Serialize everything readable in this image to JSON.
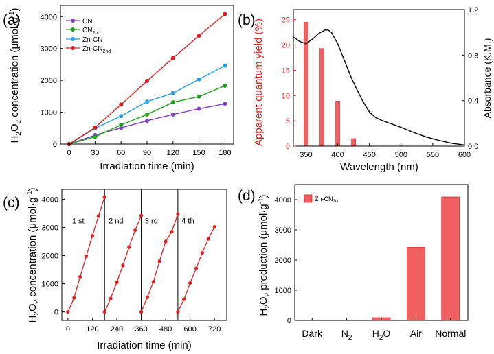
{
  "colors": {
    "cn": "#8040c0",
    "cn2nd": "#22a022",
    "zncn": "#2aa0e0",
    "zncn2nd": "#e02020",
    "bar_fill": "#f06060",
    "bar_edge": "#e02020",
    "absorbance_line": "#000000",
    "right_axis": "#000000",
    "left_axis_b": "#e02020"
  },
  "chart_data": [
    {
      "panel": "(a)",
      "type": "line",
      "xlabel": "Irradiation time (min)",
      "ylabel": "H2O2 concentration (μmol·g-1)",
      "xlim": [
        -10,
        190
      ],
      "ylim": [
        0,
        4350
      ],
      "xticks": [
        0,
        30,
        60,
        90,
        120,
        150,
        180
      ],
      "yticks": [
        0,
        1000,
        2000,
        3000,
        4000
      ],
      "legend_position": "top-left",
      "x": [
        0,
        30,
        60,
        90,
        120,
        150,
        180
      ],
      "series": [
        {
          "name": "CN",
          "values": [
            0,
            280,
            510,
            730,
            930,
            1110,
            1265
          ]
        },
        {
          "name": "CN2nd",
          "values": [
            0,
            230,
            600,
            930,
            1310,
            1490,
            1830
          ]
        },
        {
          "name": "Zn-CN",
          "values": [
            0,
            490,
            880,
            1330,
            1600,
            2030,
            2460
          ]
        },
        {
          "name": "Zn-CN2nd",
          "values": [
            0,
            520,
            1240,
            1980,
            2700,
            3400,
            4080
          ]
        }
      ]
    },
    {
      "panel": "(b)",
      "type": "bar",
      "xlabel": "Wavelength (nm)",
      "ylabel": "Apparent quantum yield (%)",
      "y2label": "Absorbance (K.M.)",
      "xlim": [
        330,
        600
      ],
      "ylim": [
        0,
        27
      ],
      "y2lim": [
        0,
        1.2
      ],
      "xticks": [
        350,
        400,
        450,
        500,
        550,
        600
      ],
      "yticks": [
        0,
        5,
        10,
        15,
        20,
        25
      ],
      "y2ticks": [
        0.0,
        0.4,
        0.8,
        1.2
      ],
      "bars": {
        "categories": [
          350,
          375,
          400,
          425
        ],
        "values": [
          24.5,
          19.3,
          8.9,
          1.5
        ]
      },
      "absorbance": {
        "x": [
          330,
          340,
          350,
          360,
          370,
          380,
          385,
          390,
          400,
          410,
          420,
          430,
          440,
          450,
          460,
          470,
          480,
          490,
          500,
          520,
          540,
          560,
          580,
          600
        ],
        "values": [
          0.96,
          0.92,
          0.9,
          0.94,
          0.99,
          1.02,
          1.02,
          1.0,
          0.9,
          0.76,
          0.62,
          0.5,
          0.39,
          0.3,
          0.25,
          0.225,
          0.205,
          0.185,
          0.165,
          0.12,
          0.08,
          0.05,
          0.025,
          0.01
        ]
      }
    },
    {
      "panel": "(c)",
      "type": "line",
      "xlabel": "Irradiation time (min)",
      "ylabel": "H2O2 concentration (μmol·g-1)",
      "xlim": [
        -30,
        780
      ],
      "ylim": [
        -300,
        4350
      ],
      "xticks": [
        0,
        120,
        240,
        360,
        480,
        600,
        720
      ],
      "yticks": [
        0,
        1000,
        2000,
        3000,
        4000
      ],
      "cycle_labels": [
        "1 st",
        "2 nd",
        "3 rd",
        "4 th"
      ],
      "cycle_dividers": [
        180,
        360,
        540
      ],
      "cycles": [
        {
          "x": [
            0,
            30,
            60,
            90,
            120,
            150,
            180
          ],
          "values": [
            0,
            500,
            1250,
            1980,
            2700,
            3400,
            4080
          ]
        },
        {
          "x": [
            180,
            210,
            240,
            270,
            300,
            330,
            360
          ],
          "values": [
            0,
            480,
            1050,
            1650,
            2300,
            2900,
            3420
          ]
        },
        {
          "x": [
            360,
            390,
            420,
            450,
            480,
            510,
            540
          ],
          "values": [
            0,
            520,
            1070,
            1800,
            2500,
            2850,
            3480
          ]
        },
        {
          "x": [
            540,
            570,
            600,
            630,
            660,
            690,
            720
          ],
          "values": [
            0,
            450,
            1030,
            1550,
            2100,
            2600,
            3020
          ]
        }
      ]
    },
    {
      "panel": "(d)",
      "type": "bar",
      "ylabel": "H2O2 production (μmol·g-1)",
      "ylim": [
        0,
        4500
      ],
      "yticks": [
        0,
        1000,
        2000,
        3000,
        4000
      ],
      "legend_position": "top-left",
      "categories": [
        "Dark",
        "N2",
        "H2O",
        "Air",
        "Normal"
      ],
      "series": [
        {
          "name": "Zn-CN2nd",
          "values": [
            0,
            0,
            90,
            2420,
            4090
          ]
        }
      ]
    }
  ],
  "figure_text": {
    "panel_a": "(a)",
    "panel_b": "(b)",
    "panel_c": "(c)",
    "panel_d": "(d)",
    "legend_a": {
      "cn": "CN",
      "cn2nd_base": "CN",
      "cn2nd_sub": "2nd",
      "zncn": "Zn-CN",
      "zncn2nd_base": "Zn-CN",
      "zncn2nd_sub": "2nd"
    },
    "legend_d": {
      "base": "Zn-CN",
      "sub": "2nd"
    },
    "ylabel_conc": {
      "pre": "H",
      "sub1": "2",
      "mid": "O",
      "sub2": "2",
      "post": " concentration (μmol·g",
      "sup": "-1",
      "end": ")"
    },
    "ylabel_prod": {
      "pre": "H",
      "sub1": "2",
      "mid": "O",
      "sub2": "2",
      "post": " production (μmol·g",
      "sup": "-1",
      "end": ")"
    },
    "xlabel_d_n2": {
      "base": "N",
      "sub": "2"
    },
    "xlabel_d_h2o": {
      "pre": "H",
      "sub": "2",
      "post": "O"
    }
  }
}
